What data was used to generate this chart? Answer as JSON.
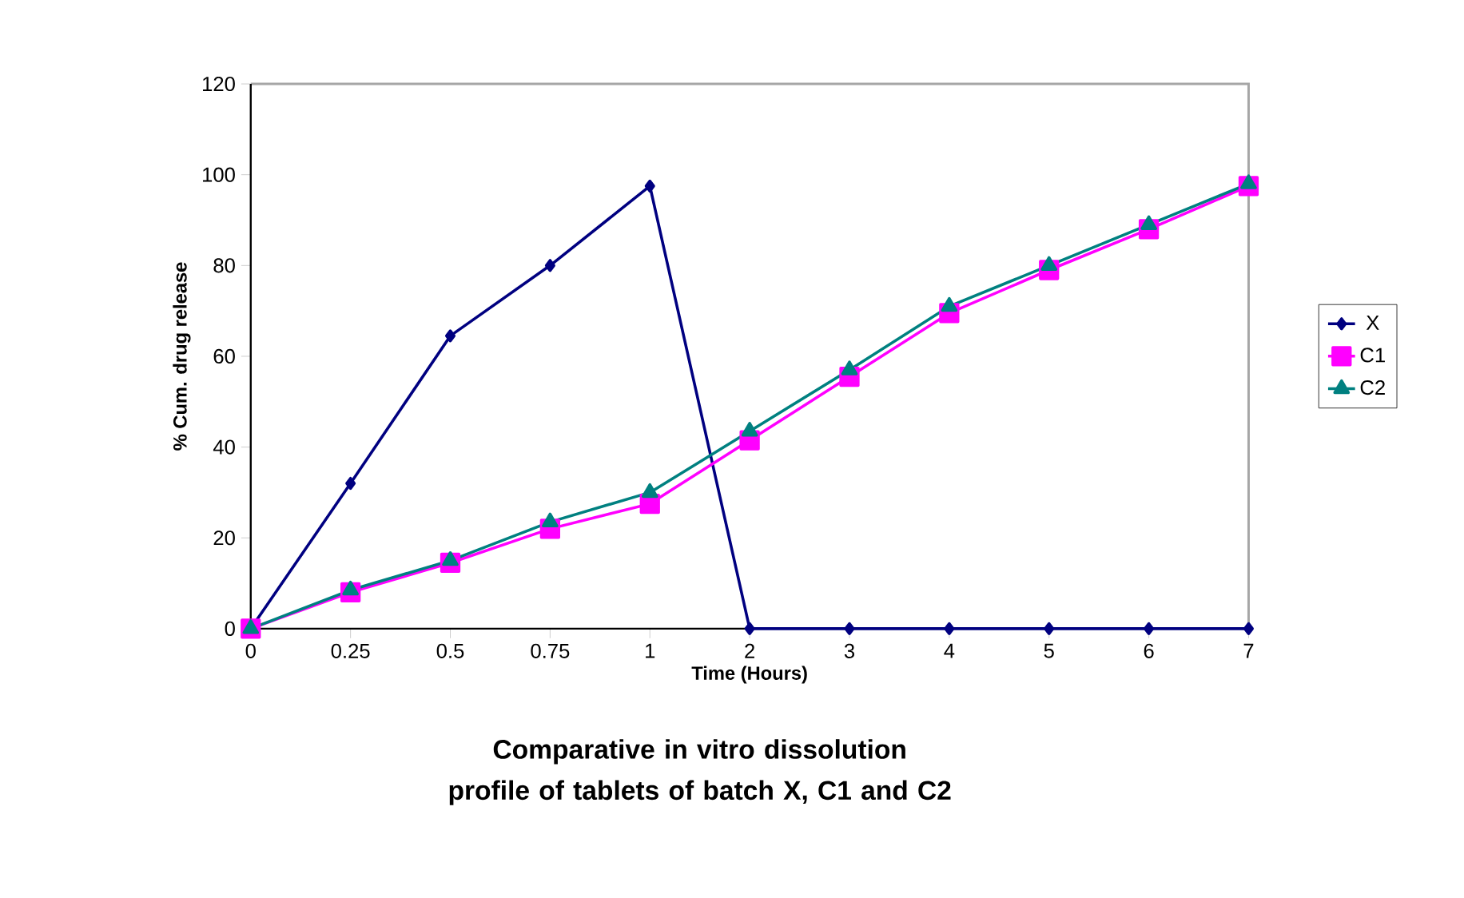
{
  "chart_data": {
    "type": "line",
    "title": "Comparative in vitro dissolution profile of tablets of batch X, C1 and  C2",
    "xlabel": "Time (Hours)",
    "ylabel": "% Cum. drug release",
    "categories": [
      "0",
      "0.25",
      "0.5",
      "0.75",
      "1",
      "2",
      "3",
      "4",
      "5",
      "6",
      "7"
    ],
    "series": [
      {
        "name": "X",
        "color": "#000080",
        "marker": "diamond",
        "values": [
          0,
          32,
          64.5,
          80,
          97.5,
          0,
          0,
          0,
          0,
          0,
          0
        ]
      },
      {
        "name": "C1",
        "color": "#ff00ff",
        "marker": "square",
        "values": [
          0,
          8,
          14.5,
          22,
          27.5,
          41.5,
          55.5,
          69.5,
          79,
          88,
          97.5
        ]
      },
      {
        "name": "C2",
        "color": "#008080",
        "marker": "triangle",
        "values": [
          0,
          8.5,
          15,
          23.5,
          30,
          43.5,
          57,
          71,
          80,
          89,
          98
        ]
      }
    ],
    "ylim": [
      0,
      120
    ],
    "yticks": [
      0,
      20,
      40,
      60,
      80,
      100,
      120
    ],
    "grid": false,
    "legend": "right",
    "line_style": "solid"
  }
}
